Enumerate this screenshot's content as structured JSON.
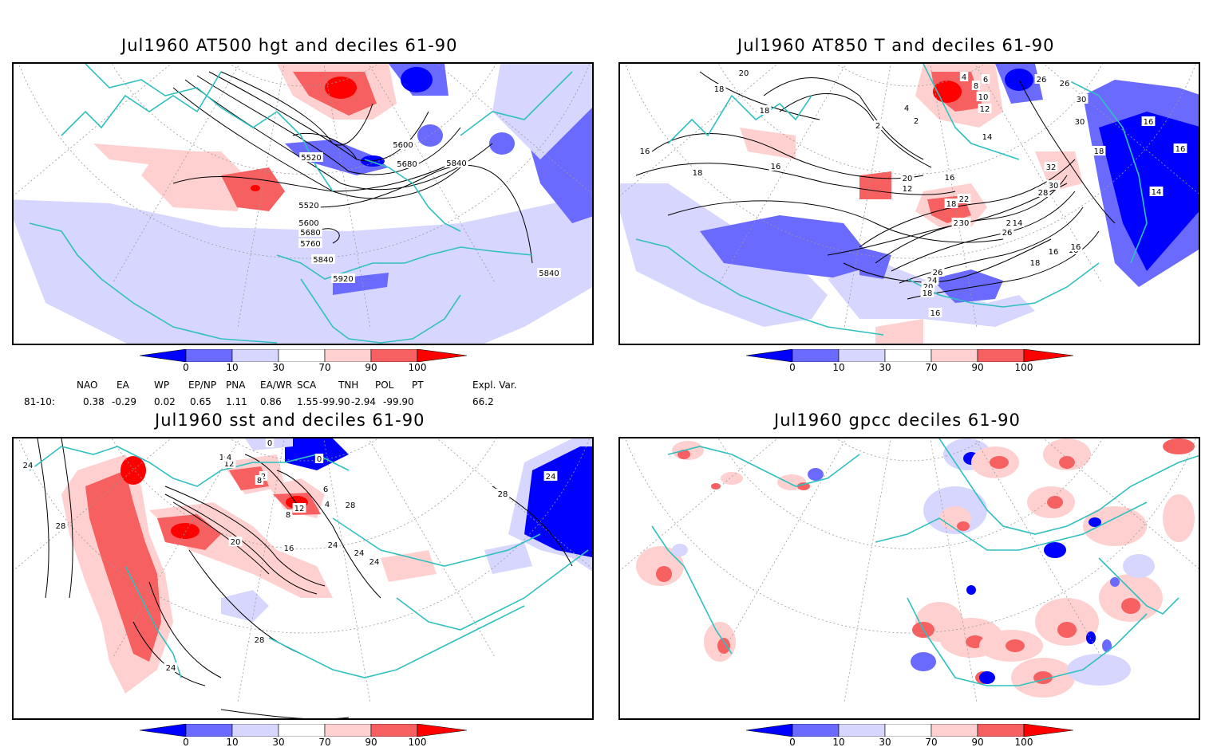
{
  "panels": [
    {
      "id": "hgt",
      "title": "Jul1960 AT500 hgt and deciles 61-90",
      "contour_labels": [
        "5520",
        "5600",
        "5680",
        "5840",
        "5520",
        "5600",
        "5680",
        "5760",
        "5840",
        "5920",
        "5840"
      ]
    },
    {
      "id": "t850",
      "title": "Jul1960 AT850 T and deciles 61-90",
      "contour_labels": [
        "20",
        "18",
        "18",
        "16",
        "18",
        "16",
        "4",
        "4",
        "2",
        "2",
        "6",
        "8",
        "10",
        "12",
        "14",
        "26",
        "26",
        "30",
        "30",
        "16",
        "16",
        "32",
        "30",
        "28",
        "16",
        "14",
        "16",
        "20",
        "12",
        "22",
        "18",
        "24",
        "26",
        "28",
        "30",
        "26",
        "24",
        "20",
        "18",
        "16",
        "14",
        "18",
        "16",
        "18",
        "16"
      ]
    },
    {
      "id": "sst",
      "title": "Jul1960 sst and deciles 61-90",
      "contour_labels": [
        "24",
        "28",
        "0",
        "10",
        "12",
        "4",
        "0",
        "2",
        "8",
        "12",
        "6",
        "4",
        "8",
        "20",
        "16",
        "24",
        "24",
        "24",
        "28",
        "28",
        "24",
        "28",
        "24"
      ]
    },
    {
      "id": "gpcc",
      "title": "Jul1960 gpcc deciles 61-90",
      "contour_labels": []
    }
  ],
  "colorbar": {
    "ticks": [
      "0",
      "10",
      "30",
      "70",
      "90",
      "100"
    ],
    "colors": [
      "#0000ff",
      "#6a6aff",
      "#d6d6ff",
      "#ffffff",
      "#ffd0d0",
      "#f76060",
      "#ff0000"
    ]
  },
  "indices": {
    "headers": [
      "NAO",
      "EA",
      "WP",
      "EP/NP",
      "PNA",
      "EA/WR",
      "SCA",
      "TNH",
      "POL",
      "PT",
      "Expl. Var."
    ],
    "row_label": "81-10:",
    "values": [
      "0.38",
      "-0.29",
      "0.02",
      "0.65",
      "1.11",
      "0.86",
      "1.55",
      "-99.90",
      "-2.94",
      "-99.90",
      "66.2"
    ]
  },
  "colors": {
    "border": "#30c0c0",
    "contour": "#000000",
    "graticule": "#999999"
  }
}
